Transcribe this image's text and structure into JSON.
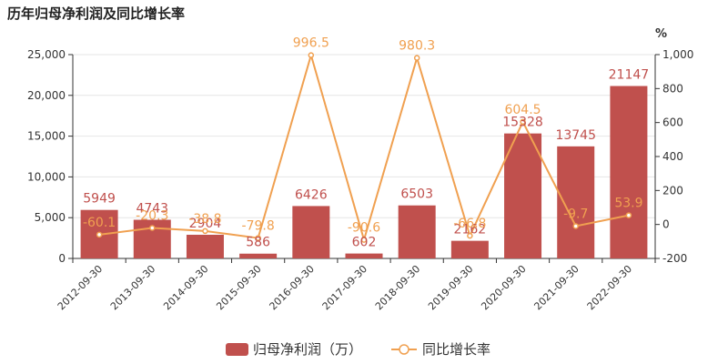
{
  "chart_data": {
    "type": "bar",
    "title": "历年归母净利润及同比增长率",
    "categories": [
      "2012-09-30",
      "2013-09-30",
      "2014-09-30",
      "2015-09-30",
      "2016-09-30",
      "2017-09-30",
      "2018-09-30",
      "2019-09-30",
      "2020-09-30",
      "2021-09-30",
      "2022-09-30"
    ],
    "series": [
      {
        "name": "归母净利润（万）",
        "type": "bar",
        "axis": "left",
        "color": "#c0504d",
        "values": [
          5949,
          4743,
          2904,
          586,
          6426,
          602,
          6503,
          2162,
          15328,
          13745,
          21147
        ],
        "labels": [
          "5949",
          "4743",
          "2904",
          "586",
          "6426",
          "602",
          "6503",
          "2162",
          "15328",
          "13745",
          "21147"
        ]
      },
      {
        "name": "同比增长率",
        "type": "line",
        "axis": "right",
        "color": "#f0a050",
        "values": [
          -60.1,
          -20.3,
          -38.8,
          -79.8,
          996.5,
          -90.6,
          980.3,
          -66.8,
          604.5,
          -9.7,
          53.9
        ],
        "labels": [
          "-60.1",
          "-20.3",
          "-38.8",
          "-79.8",
          "996.5",
          "-90.6",
          "980.3",
          "-66.8",
          "604.5",
          "-9.7",
          "53.9"
        ]
      }
    ],
    "y_left": {
      "min": 0,
      "max": 25000,
      "ticks": [
        0,
        5000,
        10000,
        15000,
        20000,
        25000
      ],
      "tick_labels": [
        "0",
        "5,000",
        "10,000",
        "15,000",
        "20,000",
        "25,000"
      ]
    },
    "y_right": {
      "min": -200,
      "max": 1000,
      "unit": "%",
      "ticks": [
        -200,
        0,
        200,
        400,
        600,
        800,
        1000
      ],
      "tick_labels": [
        "-200",
        "0",
        "200",
        "400",
        "600",
        "800",
        "1,000"
      ]
    },
    "legend": {
      "position": "bottom-center",
      "items": [
        {
          "label": "归母净利润（万）",
          "marker": "bar"
        },
        {
          "label": "同比增长率",
          "marker": "line"
        }
      ]
    },
    "grid": true
  }
}
